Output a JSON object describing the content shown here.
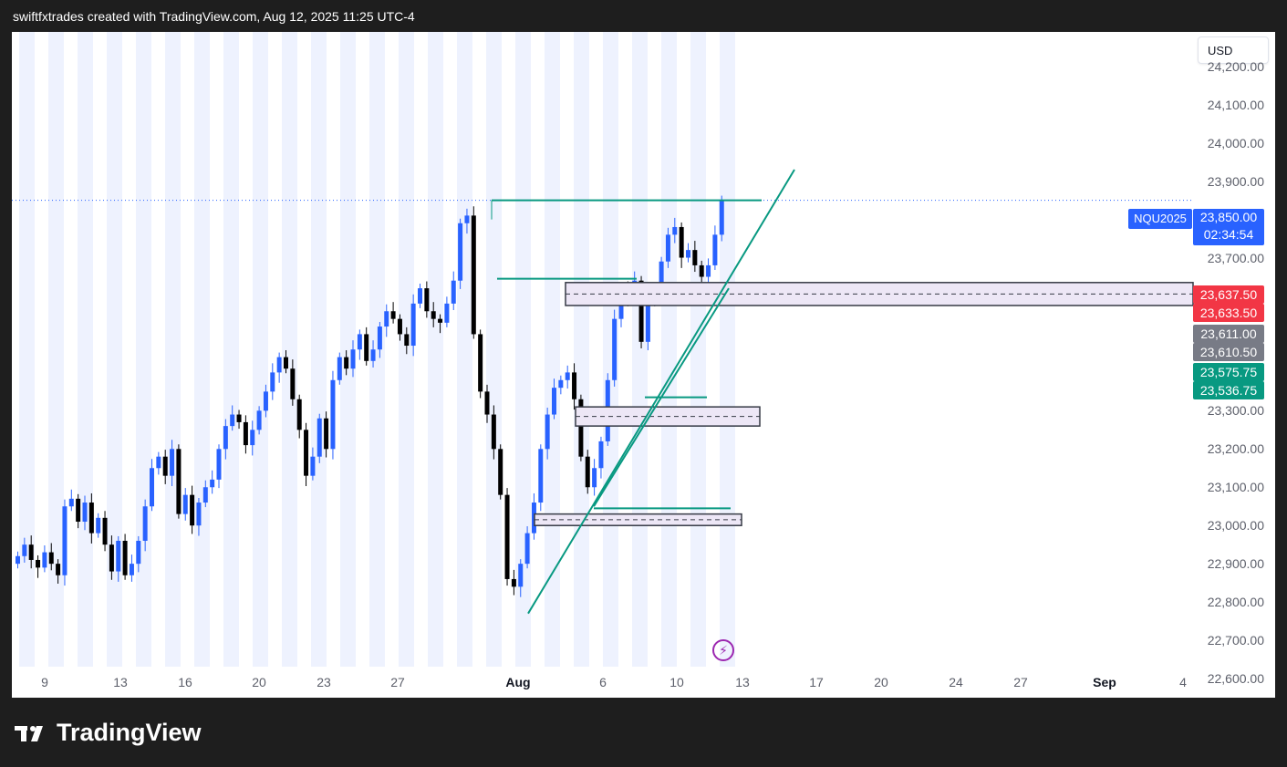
{
  "header": {
    "caption": "swiftfxtrades created with TradingView.com, Aug 12, 2025 11:25 UTC-4"
  },
  "toolbar": {
    "currency": "USD"
  },
  "brand": {
    "name": "TradingView",
    "logo_icon": "tradingview-logo-icon"
  },
  "symbol": {
    "ticker": "NQU2025",
    "last_price": "23,850.00",
    "countdown": "02:34:54"
  },
  "price_labels": [
    {
      "text": "23,637.50",
      "color": "#f23645",
      "value": 23637.5
    },
    {
      "text": "23,633.50",
      "color": "#f23645",
      "value": 23633.5
    },
    {
      "text": "23,611.00",
      "color": "#787b86",
      "value": 23611.0
    },
    {
      "text": "23,610.50",
      "color": "#787b86",
      "value": 23610.5
    },
    {
      "text": "23,575.75",
      "color": "#089981",
      "value": 23575.75
    },
    {
      "text": "23,536.75",
      "color": "#089981",
      "value": 23536.75
    }
  ],
  "colors": {
    "up_candle": "#2962ff",
    "down_candle": "#000000",
    "session_shade": "#eef2fe",
    "trendline": "#089981",
    "zone_fill": "#ede7f6",
    "zone_border": "#363a45",
    "symbol_tag": "#2962ff",
    "bolt_icon": "#9c27b0"
  },
  "icons": {
    "events": "lightning-icon"
  },
  "chart_data": {
    "type": "candlestick",
    "symbol": "NQU2025",
    "ylim": [
      22550,
      24290
    ],
    "y_ticks": [
      "24,200.00",
      "24,100.00",
      "24,000.00",
      "23,900.00",
      "23,700.00",
      "23,300.00",
      "23,200.00",
      "23,100.00",
      "23,000.00",
      "22,900.00",
      "22,800.00",
      "22,700.00",
      "22,600.00"
    ],
    "y_tick_values": [
      24200,
      24100,
      24000,
      23900,
      23700,
      23300,
      23200,
      23100,
      23000,
      22900,
      22800,
      22700,
      22600
    ],
    "x_ticks": [
      "9",
      "13",
      "16",
      "20",
      "23",
      "27",
      "Aug",
      "6",
      "10",
      "13",
      "17",
      "20",
      "24",
      "27",
      "Sep",
      "4"
    ],
    "x_tick_major": [
      "Aug",
      "Sep"
    ],
    "closes": [
      22920,
      22950,
      22910,
      22890,
      22930,
      22900,
      22870,
      23050,
      23070,
      23010,
      23060,
      22980,
      23020,
      22950,
      22880,
      22960,
      22870,
      22900,
      22960,
      23050,
      23150,
      23180,
      23130,
      23200,
      23030,
      23080,
      23000,
      23060,
      23100,
      23120,
      23200,
      23260,
      23290,
      23270,
      23210,
      23250,
      23300,
      23350,
      23400,
      23440,
      23410,
      23330,
      23250,
      23130,
      23180,
      23280,
      23200,
      23380,
      23440,
      23410,
      23460,
      23500,
      23430,
      23460,
      23520,
      23560,
      23540,
      23500,
      23470,
      23580,
      23620,
      23560,
      23540,
      23530,
      23580,
      23640,
      23790,
      23810,
      23500,
      23350,
      23290,
      23200,
      23080,
      22860,
      22840,
      22900,
      22980,
      23060,
      23200,
      23290,
      23360,
      23380,
      23400,
      23330,
      23180,
      23100,
      23150,
      23220,
      23380,
      23540,
      23620,
      23600,
      23640,
      23480,
      23610,
      23600,
      23690,
      23760,
      23780,
      23700,
      23720,
      23680,
      23650,
      23680,
      23760,
      23850
    ],
    "annotations": {
      "resistance_level": 23850,
      "demand_zones": [
        [
          23575,
          23635
        ],
        [
          23260,
          23310
        ],
        [
          23000,
          23030
        ]
      ],
      "swing_levels": [
        23645,
        23335,
        23045
      ]
    }
  }
}
